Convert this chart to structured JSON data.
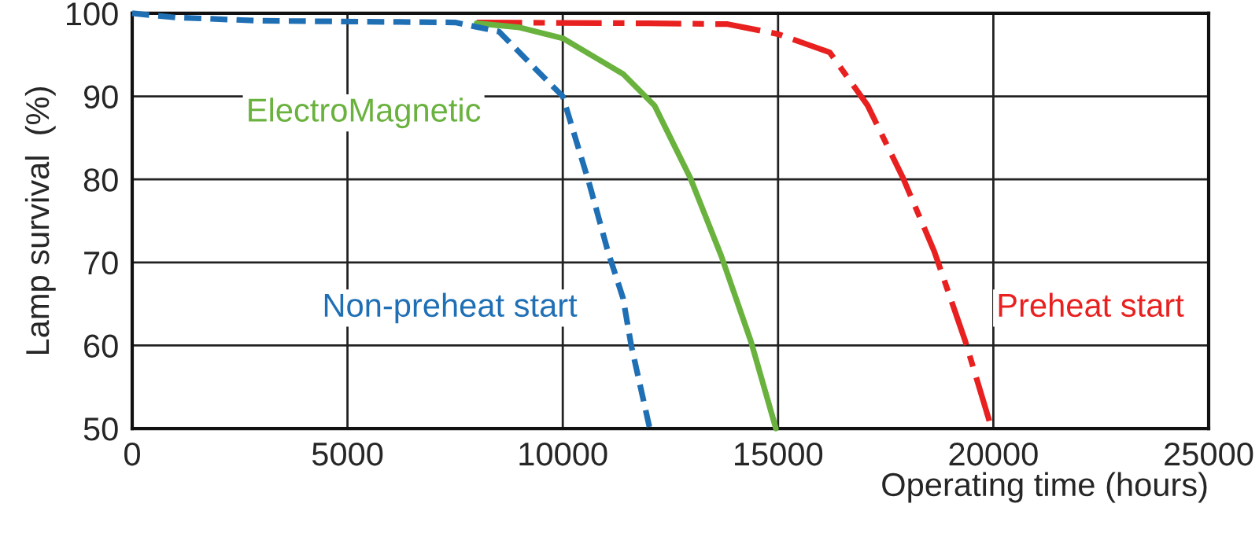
{
  "chart_data": {
    "type": "line",
    "xlabel": "Operating time (hours)",
    "ylabel": "Lamp survival  (%)",
    "xlim": [
      0,
      25000
    ],
    "xticks": [
      0,
      5000,
      10000,
      15000,
      20000,
      25000
    ],
    "ylim": [
      50,
      100
    ],
    "yticks": [
      50,
      60,
      70,
      80,
      90,
      100
    ],
    "grid": true,
    "legend": false,
    "marker": "none",
    "series": [
      {
        "name": "Non-preheat start",
        "color": "#1f6fb5",
        "line_style": "dashed",
        "x": [
          0,
          1000,
          3000,
          7500,
          8520,
          9350,
          10000,
          10620,
          11050,
          11400,
          11590,
          12020
        ],
        "values": [
          100,
          99.5,
          99.1,
          98.9,
          97.8,
          93.4,
          90,
          79.4,
          71.3,
          65.7,
          60,
          50
        ]
      },
      {
        "name": "ElectroMagnetic",
        "color": "#6ab23e",
        "line_style": "solid",
        "x": [
          8000,
          9000,
          10000,
          11400,
          12130,
          12960,
          13680,
          14370,
          14950
        ],
        "values": [
          98.8,
          98.3,
          97,
          92.7,
          88.9,
          80.2,
          70.8,
          60.5,
          50
        ]
      },
      {
        "name": "Preheat start",
        "color": "#e8201f",
        "line_style": "dashdot",
        "x": [
          8000,
          12000,
          13830,
          15000,
          16200,
          17080,
          17900,
          18630,
          19350,
          19960
        ],
        "values": [
          98.9,
          98.8,
          98.7,
          97.5,
          95.3,
          88.9,
          80.2,
          71.3,
          60.5,
          50
        ]
      }
    ]
  }
}
